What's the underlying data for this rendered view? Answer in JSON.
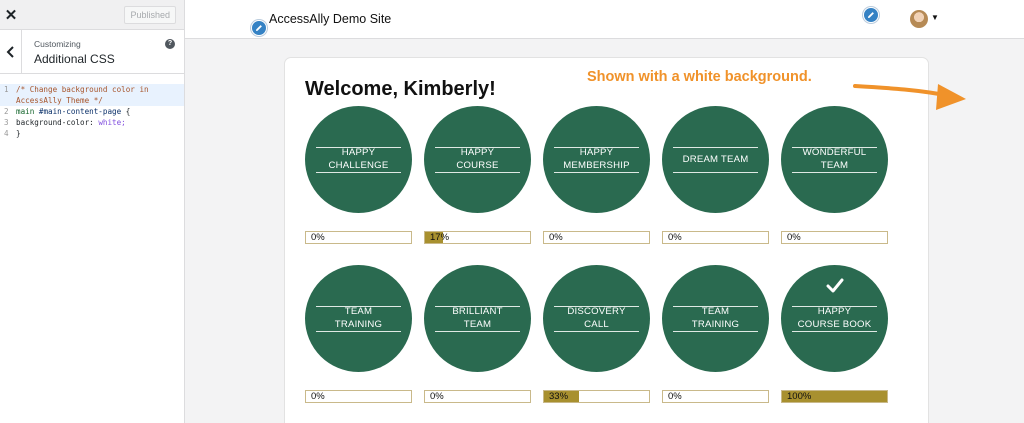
{
  "sidebar": {
    "close_label": "✕",
    "published_label": "Published",
    "section_label": "Customizing",
    "section_title": "Additional CSS",
    "help_label": "?",
    "code_lines": [
      {
        "n": "1",
        "text": "/* Change background color in AccessAlly Theme */"
      },
      {
        "n": "2",
        "text_a": "main",
        "text_b": "#main-content-page",
        "text_c": "{"
      },
      {
        "n": "3",
        "prop": "background-color:",
        "val": "white;"
      },
      {
        "n": "4",
        "text": "}"
      }
    ]
  },
  "preview": {
    "site_title": "AccessAlly Demo Site",
    "welcome": "Welcome, Kimberly!",
    "annotation": "Shown with a white background.",
    "colors": {
      "badge": "#2a6a50",
      "progress_fill": "#a8902f",
      "annotation": "#f0922a",
      "pencil": "#3582c4"
    },
    "badges": [
      {
        "label": "HAPPY\nCHALLENGE",
        "progress": 0,
        "progress_text": "0%",
        "completed": false
      },
      {
        "label": "HAPPY\nCOURSE",
        "progress": 17,
        "progress_text": "17%",
        "completed": false
      },
      {
        "label": "HAPPY\nMEMBERSHIP",
        "progress": 0,
        "progress_text": "0%",
        "completed": false
      },
      {
        "label": "DREAM TEAM",
        "progress": 0,
        "progress_text": "0%",
        "completed": false
      },
      {
        "label": "WONDERFUL\nTEAM",
        "progress": 0,
        "progress_text": "0%",
        "completed": false
      },
      {
        "label": "TEAM\nTRAINING",
        "progress": 0,
        "progress_text": "0%",
        "completed": false
      },
      {
        "label": "BRILLIANT\nTEAM",
        "progress": 0,
        "progress_text": "0%",
        "completed": false
      },
      {
        "label": "DISCOVERY\nCALL",
        "progress": 33,
        "progress_text": "33%",
        "completed": false
      },
      {
        "label": "TEAM\nTRAINING",
        "progress": 0,
        "progress_text": "0%",
        "completed": false
      },
      {
        "label": "HAPPY\nCOURSE BOOK",
        "progress": 100,
        "progress_text": "100%",
        "completed": true
      }
    ]
  }
}
